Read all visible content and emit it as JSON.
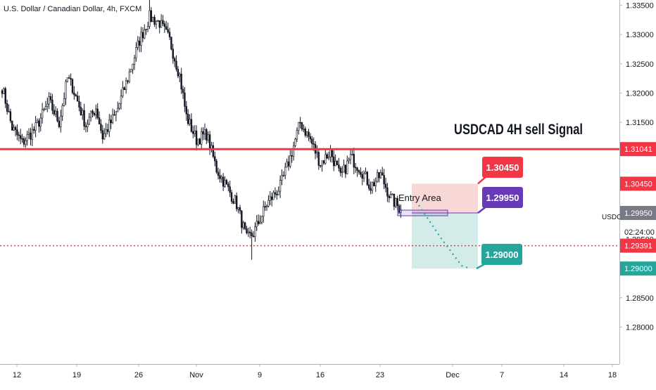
{
  "header": {
    "symbol_title": "U.S. Dollar / Canadian Dollar, 4h, FXCM"
  },
  "chart_data": {
    "type": "candlestick",
    "title": "USDCAD 4H sell Signal",
    "y_axis": {
      "ticks": [
        "1.33500",
        "1.33000",
        "1.32500",
        "1.32000",
        "1.31500",
        "1.30500",
        "1.30000",
        "1.29500",
        "1.29000",
        "1.28500",
        "1.28000"
      ],
      "tick_values": [
        1.335,
        1.33,
        1.325,
        1.32,
        1.315,
        1.305,
        1.3,
        1.295,
        1.29,
        1.285,
        1.28
      ],
      "ylim": [
        1.2741,
        1.3365
      ]
    },
    "x_axis": {
      "ticks": [
        "12",
        "19",
        "26",
        "Nov",
        "9",
        "16",
        "23",
        "Dec",
        "7",
        "14",
        "18"
      ]
    },
    "price_anchors": [
      {
        "i": 0,
        "close": 1.321
      },
      {
        "i": 6,
        "close": 1.314
      },
      {
        "i": 12,
        "close": 1.3115
      },
      {
        "i": 20,
        "close": 1.314
      },
      {
        "i": 28,
        "close": 1.3185
      },
      {
        "i": 34,
        "close": 1.315
      },
      {
        "i": 39,
        "close": 1.3225
      },
      {
        "i": 42,
        "close": 1.321
      },
      {
        "i": 50,
        "close": 1.3145
      },
      {
        "i": 56,
        "close": 1.3175
      },
      {
        "i": 60,
        "close": 1.3125
      },
      {
        "i": 68,
        "close": 1.3165
      },
      {
        "i": 75,
        "close": 1.3225
      },
      {
        "i": 82,
        "close": 1.329
      },
      {
        "i": 88,
        "close": 1.333
      },
      {
        "i": 94,
        "close": 1.332
      },
      {
        "i": 100,
        "close": 1.329
      },
      {
        "i": 106,
        "close": 1.323
      },
      {
        "i": 110,
        "close": 1.316
      },
      {
        "i": 116,
        "close": 1.312
      },
      {
        "i": 122,
        "close": 1.313
      },
      {
        "i": 128,
        "close": 1.307
      },
      {
        "i": 134,
        "close": 1.304
      },
      {
        "i": 140,
        "close": 1.301
      },
      {
        "i": 146,
        "close": 1.295
      },
      {
        "i": 150,
        "close": 1.296
      },
      {
        "i": 158,
        "close": 1.301
      },
      {
        "i": 166,
        "close": 1.304
      },
      {
        "i": 172,
        "close": 1.309
      },
      {
        "i": 178,
        "close": 1.315
      },
      {
        "i": 184,
        "close": 1.312
      },
      {
        "i": 190,
        "close": 1.308
      },
      {
        "i": 196,
        "close": 1.31
      },
      {
        "i": 202,
        "close": 1.3055
      },
      {
        "i": 208,
        "close": 1.309
      },
      {
        "i": 214,
        "close": 1.307
      },
      {
        "i": 220,
        "close": 1.304
      },
      {
        "i": 226,
        "close": 1.306
      },
      {
        "i": 232,
        "close": 1.302
      },
      {
        "i": 238,
        "close": 1.3001
      }
    ],
    "levels": {
      "resistance": {
        "value": 1.31041,
        "label": "1.31041",
        "color": "#f23645"
      },
      "support": {
        "value": 1.29391,
        "label": "1.29391",
        "color": "#f23645"
      }
    },
    "position": {
      "stop": {
        "value": 1.3045,
        "label": "1.30450",
        "color": "#f23645"
      },
      "entry": {
        "value": 1.2995,
        "label": "1.29950",
        "color": "#673ab7"
      },
      "target": {
        "value": 1.29,
        "label": "1.29000",
        "color": "#26a69a"
      },
      "entry_area_label": "Entry Area"
    },
    "axis_badges": {
      "symbol": "USDCAD",
      "last_price": "1.30009",
      "countdown": "02:24:00"
    },
    "colors": {
      "candle": "#131722",
      "stop_zone": "#f8d7d7",
      "target_zone": "#d3ece9",
      "grid_text": "#131722"
    }
  }
}
